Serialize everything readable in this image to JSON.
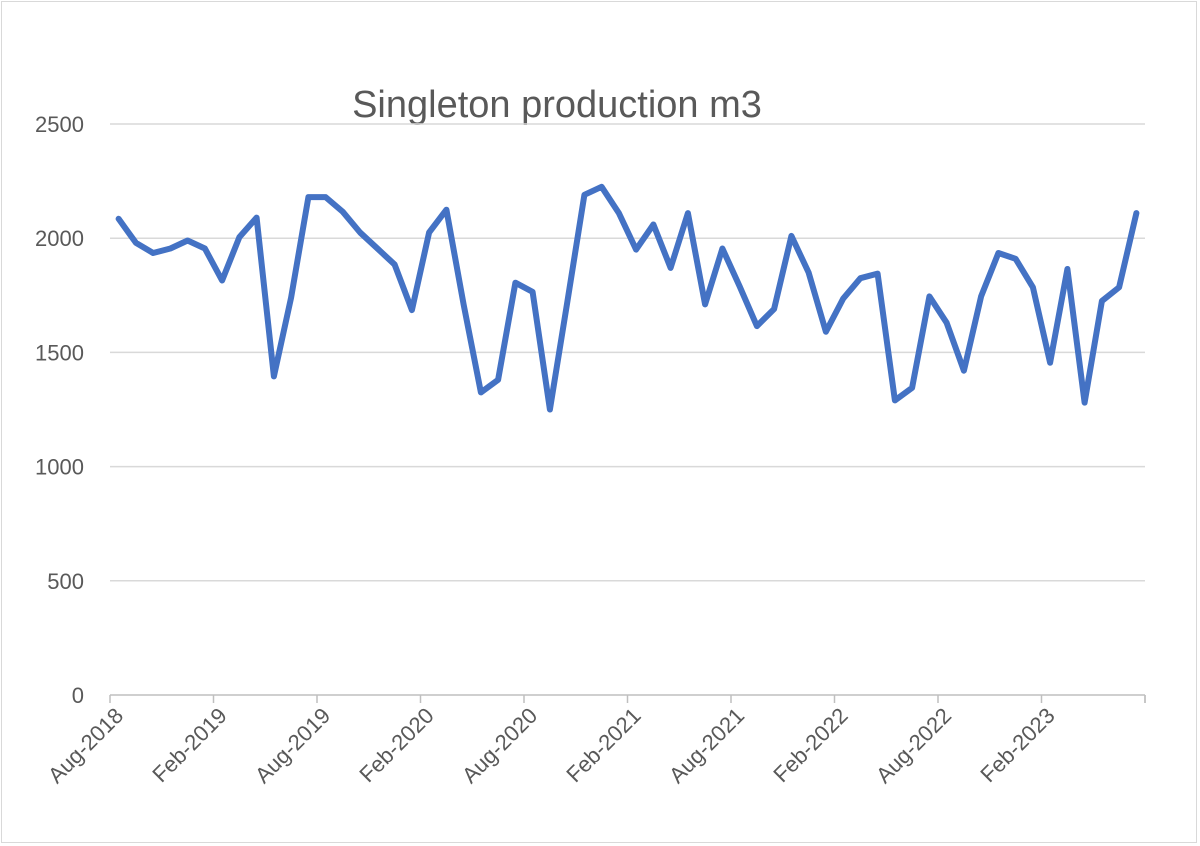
{
  "chart_data": {
    "type": "line",
    "title": "Singleton production m3",
    "xlabel": "",
    "ylabel": "",
    "ylim": [
      0,
      2500
    ],
    "yticks": [
      0,
      500,
      1000,
      1500,
      2000,
      2500
    ],
    "grid": true,
    "legend": "none",
    "line_color": "#4472c4",
    "x_tick_labels": [
      "Aug-2018",
      "Feb-2019",
      "Aug-2019",
      "Feb-2020",
      "Aug-2020",
      "Feb-2021",
      "Aug-2021",
      "Feb-2022",
      "Aug-2022",
      "Feb-2023"
    ],
    "x_tick_every": 6,
    "x_start": "Aug-2018",
    "x_end": "Jul-2023",
    "series": [
      {
        "name": "Singleton production m3",
        "values": [
          2085,
          1980,
          1935,
          1955,
          1990,
          1955,
          1815,
          2005,
          2090,
          1395,
          1740,
          2180,
          2180,
          2115,
          2025,
          1955,
          1885,
          1685,
          2025,
          2125,
          1710,
          1325,
          1380,
          1805,
          1765,
          1250,
          1715,
          2190,
          2225,
          2110,
          1950,
          2060,
          1870,
          2110,
          1710,
          1955,
          1790,
          1615,
          1690,
          2010,
          1850,
          1590,
          1735,
          1825,
          1845,
          1290,
          1345,
          1745,
          1630,
          1420,
          1745,
          1935,
          1910,
          1785,
          1455,
          1865,
          1280,
          1725,
          1785,
          2110
        ]
      }
    ]
  }
}
